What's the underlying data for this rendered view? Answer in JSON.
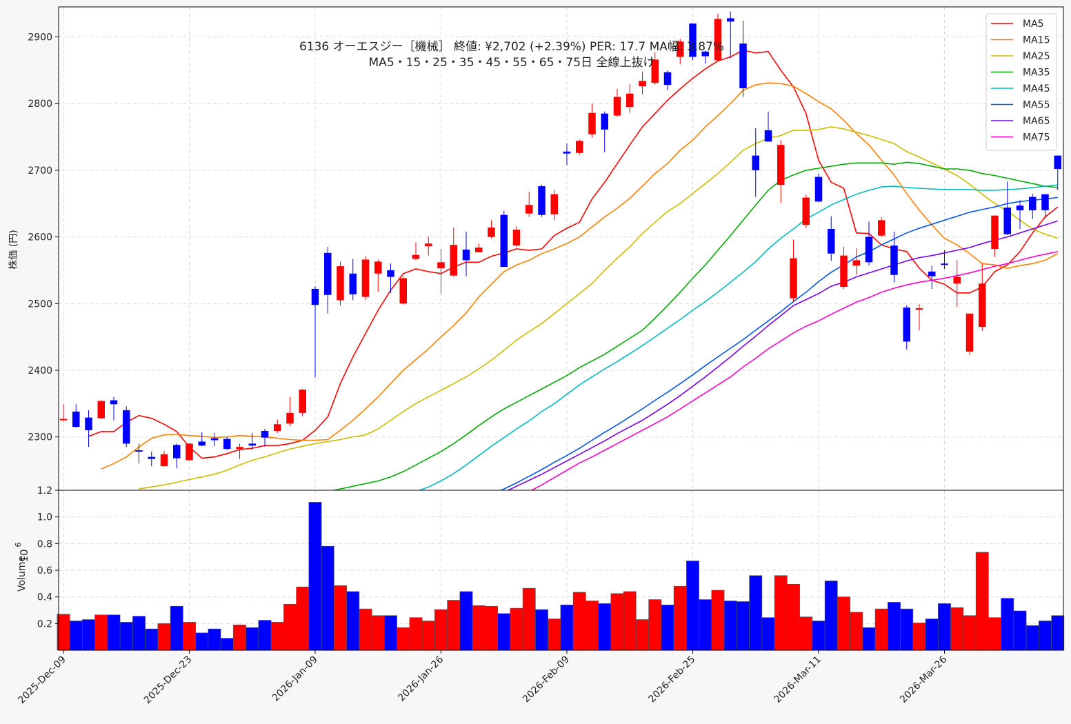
{
  "title": {
    "line1": "6136  オーエスジー［機械］ 終値: ¥2,702 (+2.39%)   PER: 17.7  MA幅: 3.87%",
    "line2": "MA5・15・25・35・45・55・65・75日 全線上抜け"
  },
  "ylabel_price": "株価 (円)",
  "ylabel_volume": "Volume",
  "volume_exponent": "10",
  "volume_exponent_power": "6",
  "colors": {
    "up": "#ff0000",
    "down": "#0000ff",
    "grid": "#d9d9d9"
  },
  "chart_data": {
    "type": "candlestick",
    "price_ylim": [
      2220,
      2945
    ],
    "price_yticks": [
      "2300",
      "2400",
      "2500",
      "2600",
      "2700",
      "2800",
      "2900"
    ],
    "volume_ylim": [
      0.0,
      1.2
    ],
    "volume_yticks": [
      "0.2",
      "0.4",
      "0.6",
      "0.8",
      "1.0",
      "1.2"
    ],
    "x_tick_labels": [
      {
        "index": 0,
        "label": "2025-Dec-09"
      },
      {
        "index": 10,
        "label": "2025-Dec-23"
      },
      {
        "index": 20,
        "label": "2026-Jan-09"
      },
      {
        "index": 30,
        "label": "2026-Jan-26"
      },
      {
        "index": 40,
        "label": "2026-Feb-09"
      },
      {
        "index": 50,
        "label": "2026-Feb-25"
      },
      {
        "index": 60,
        "label": "2026-Mar-11"
      },
      {
        "index": 70,
        "label": "2026-Mar-26"
      }
    ],
    "candles": [
      {
        "o": 2326,
        "h": 2349,
        "l": 2323,
        "c": 2327,
        "v": 0.27
      },
      {
        "o": 2338,
        "h": 2349,
        "l": 2314,
        "c": 2315,
        "v": 0.22
      },
      {
        "o": 2329,
        "h": 2340,
        "l": 2285,
        "c": 2310,
        "v": 0.23
      },
      {
        "o": 2328,
        "h": 2355,
        "l": 2327,
        "c": 2354,
        "v": 0.265
      },
      {
        "o": 2355,
        "h": 2360,
        "l": 2325,
        "c": 2349,
        "v": 0.265
      },
      {
        "o": 2340,
        "h": 2346,
        "l": 2285,
        "c": 2290,
        "v": 0.21
      },
      {
        "o": 2280,
        "h": 2290,
        "l": 2260,
        "c": 2279,
        "v": 0.255
      },
      {
        "o": 2270,
        "h": 2278,
        "l": 2256,
        "c": 2267,
        "v": 0.16
      },
      {
        "o": 2256,
        "h": 2279,
        "l": 2256,
        "c": 2274,
        "v": 0.2
      },
      {
        "o": 2288,
        "h": 2290,
        "l": 2253,
        "c": 2268,
        "v": 0.33
      },
      {
        "o": 2265,
        "h": 2290,
        "l": 2265,
        "c": 2290,
        "v": 0.21
      },
      {
        "o": 2293,
        "h": 2307,
        "l": 2286,
        "c": 2287,
        "v": 0.13
      },
      {
        "o": 2298,
        "h": 2306,
        "l": 2286,
        "c": 2295,
        "v": 0.16
      },
      {
        "o": 2297,
        "h": 2300,
        "l": 2280,
        "c": 2282,
        "v": 0.09
      },
      {
        "o": 2282,
        "h": 2290,
        "l": 2267,
        "c": 2285,
        "v": 0.19
      },
      {
        "o": 2290,
        "h": 2306,
        "l": 2281,
        "c": 2287,
        "v": 0.17
      },
      {
        "o": 2309,
        "h": 2312,
        "l": 2285,
        "c": 2299,
        "v": 0.225
      },
      {
        "o": 2309,
        "h": 2326,
        "l": 2306,
        "c": 2319,
        "v": 0.21
      },
      {
        "o": 2320,
        "h": 2360,
        "l": 2316,
        "c": 2336,
        "v": 0.345
      },
      {
        "o": 2336,
        "h": 2372,
        "l": 2331,
        "c": 2371,
        "v": 0.475
      },
      {
        "o": 2522,
        "h": 2526,
        "l": 2389,
        "c": 2498,
        "v": 1.11
      },
      {
        "o": 2576,
        "h": 2585,
        "l": 2485,
        "c": 2513,
        "v": 0.78
      },
      {
        "o": 2505,
        "h": 2563,
        "l": 2497,
        "c": 2556,
        "v": 0.485
      },
      {
        "o": 2545,
        "h": 2567,
        "l": 2505,
        "c": 2514,
        "v": 0.44
      },
      {
        "o": 2510,
        "h": 2571,
        "l": 2505,
        "c": 2566,
        "v": 0.31
      },
      {
        "o": 2545,
        "h": 2566,
        "l": 2518,
        "c": 2563,
        "v": 0.26
      },
      {
        "o": 2550,
        "h": 2560,
        "l": 2516,
        "c": 2540,
        "v": 0.26
      },
      {
        "o": 2500,
        "h": 2541,
        "l": 2499,
        "c": 2538,
        "v": 0.17
      },
      {
        "o": 2567,
        "h": 2592,
        "l": 2565,
        "c": 2573,
        "v": 0.245
      },
      {
        "o": 2586,
        "h": 2600,
        "l": 2572,
        "c": 2590,
        "v": 0.22
      },
      {
        "o": 2553,
        "h": 2582,
        "l": 2515,
        "c": 2562,
        "v": 0.305
      },
      {
        "o": 2542,
        "h": 2614,
        "l": 2540,
        "c": 2588,
        "v": 0.375
      },
      {
        "o": 2581,
        "h": 2608,
        "l": 2541,
        "c": 2565,
        "v": 0.44
      },
      {
        "o": 2577,
        "h": 2590,
        "l": 2578,
        "c": 2584,
        "v": 0.335
      },
      {
        "o": 2600,
        "h": 2625,
        "l": 2598,
        "c": 2614,
        "v": 0.33
      },
      {
        "o": 2633,
        "h": 2639,
        "l": 2555,
        "c": 2555,
        "v": 0.275
      },
      {
        "o": 2587,
        "h": 2616,
        "l": 2585,
        "c": 2611,
        "v": 0.315
      },
      {
        "o": 2635,
        "h": 2668,
        "l": 2630,
        "c": 2648,
        "v": 0.465
      },
      {
        "o": 2676,
        "h": 2678,
        "l": 2630,
        "c": 2633,
        "v": 0.305
      },
      {
        "o": 2634,
        "h": 2670,
        "l": 2625,
        "c": 2664,
        "v": 0.235
      },
      {
        "o": 2728,
        "h": 2740,
        "l": 2707,
        "c": 2725,
        "v": 0.34
      },
      {
        "o": 2726,
        "h": 2746,
        "l": 2723,
        "c": 2744,
        "v": 0.435
      },
      {
        "o": 2754,
        "h": 2800,
        "l": 2749,
        "c": 2786,
        "v": 0.37
      },
      {
        "o": 2785,
        "h": 2788,
        "l": 2727,
        "c": 2761,
        "v": 0.35
      },
      {
        "o": 2782,
        "h": 2822,
        "l": 2780,
        "c": 2810,
        "v": 0.425
      },
      {
        "o": 2795,
        "h": 2829,
        "l": 2786,
        "c": 2815,
        "v": 0.44
      },
      {
        "o": 2826,
        "h": 2848,
        "l": 2814,
        "c": 2834,
        "v": 0.23
      },
      {
        "o": 2831,
        "h": 2877,
        "l": 2828,
        "c": 2866,
        "v": 0.38
      },
      {
        "o": 2847,
        "h": 2850,
        "l": 2820,
        "c": 2828,
        "v": 0.34
      },
      {
        "o": 2870,
        "h": 2897,
        "l": 2859,
        "c": 2893,
        "v": 0.48
      },
      {
        "o": 2920,
        "h": 2920,
        "l": 2865,
        "c": 2870,
        "v": 0.67
      },
      {
        "o": 2878,
        "h": 2880,
        "l": 2860,
        "c": 2871,
        "v": 0.38
      },
      {
        "o": 2865,
        "h": 2935,
        "l": 2863,
        "c": 2927,
        "v": 0.45
      },
      {
        "o": 2928,
        "h": 2938,
        "l": 2868,
        "c": 2923,
        "v": 0.37
      },
      {
        "o": 2890,
        "h": 2924,
        "l": 2810,
        "c": 2823,
        "v": 0.365
      },
      {
        "o": 2722,
        "h": 2763,
        "l": 2660,
        "c": 2700,
        "v": 0.56
      },
      {
        "o": 2760,
        "h": 2788,
        "l": 2747,
        "c": 2743,
        "v": 0.245
      },
      {
        "o": 2678,
        "h": 2745,
        "l": 2651,
        "c": 2738,
        "v": 0.56
      },
      {
        "o": 2508,
        "h": 2596,
        "l": 2503,
        "c": 2568,
        "v": 0.495
      },
      {
        "o": 2618,
        "h": 2663,
        "l": 2613,
        "c": 2659,
        "v": 0.25
      },
      {
        "o": 2690,
        "h": 2695,
        "l": 2652,
        "c": 2653,
        "v": 0.22
      },
      {
        "o": 2612,
        "h": 2631,
        "l": 2564,
        "c": 2575,
        "v": 0.52
      },
      {
        "o": 2525,
        "h": 2585,
        "l": 2522,
        "c": 2572,
        "v": 0.4
      },
      {
        "o": 2557,
        "h": 2583,
        "l": 2543,
        "c": 2565,
        "v": 0.285
      },
      {
        "o": 2600,
        "h": 2623,
        "l": 2557,
        "c": 2562,
        "v": 0.17
      },
      {
        "o": 2602,
        "h": 2629,
        "l": 2600,
        "c": 2625,
        "v": 0.31
      },
      {
        "o": 2587,
        "h": 2608,
        "l": 2532,
        "c": 2543,
        "v": 0.36
      },
      {
        "o": 2494,
        "h": 2497,
        "l": 2431,
        "c": 2443,
        "v": 0.31
      },
      {
        "o": 2492,
        "h": 2499,
        "l": 2460,
        "c": 2493,
        "v": 0.205
      },
      {
        "o": 2548,
        "h": 2557,
        "l": 2522,
        "c": 2541,
        "v": 0.235
      },
      {
        "o": 2560,
        "h": 2580,
        "l": 2552,
        "c": 2558,
        "v": 0.35
      },
      {
        "o": 2530,
        "h": 2565,
        "l": 2495,
        "c": 2540,
        "v": 0.32
      },
      {
        "o": 2428,
        "h": 2485,
        "l": 2423,
        "c": 2485,
        "v": 0.26
      },
      {
        "o": 2465,
        "h": 2560,
        "l": 2459,
        "c": 2530,
        "v": 0.735
      },
      {
        "o": 2582,
        "h": 2632,
        "l": 2570,
        "c": 2632,
        "v": 0.245
      },
      {
        "o": 2644,
        "h": 2683,
        "l": 2603,
        "c": 2604,
        "v": 0.39
      },
      {
        "o": 2647,
        "h": 2655,
        "l": 2612,
        "c": 2640,
        "v": 0.295
      },
      {
        "o": 2660,
        "h": 2665,
        "l": 2627,
        "c": 2640,
        "v": 0.185
      },
      {
        "o": 2664,
        "h": 2664,
        "l": 2628,
        "c": 2640,
        "v": 0.22
      },
      {
        "o": 2722,
        "h": 2722,
        "l": 2670,
        "c": 2702,
        "v": 0.26
      }
    ],
    "ma_series": [
      {
        "name": "MA5",
        "color": "#ff0000",
        "values": [
          2301,
          2308,
          2308,
          2322,
          2332,
          2328,
          2319,
          2308,
          2285,
          2268,
          2270,
          2275,
          2281,
          2283,
          2287,
          2287,
          2290,
          2295,
          2310,
          2330,
          2380,
          2420,
          2455,
          2490,
          2520,
          2545,
          2552,
          2548,
          2545,
          2555,
          2562,
          2562,
          2571,
          2576,
          2582,
          2580,
          2582,
          2602,
          2613,
          2622,
          2657,
          2682,
          2710,
          2738,
          2765,
          2785,
          2805,
          2822,
          2838,
          2852,
          2864,
          2870,
          2880,
          2876,
          2878,
          2850,
          2825,
          2785,
          2715,
          2682,
          2673,
          2606,
          2605,
          2588,
          2582,
          2578,
          2553,
          2535,
          2529,
          2516,
          2516,
          2525,
          2548,
          2558,
          2578,
          2606,
          2630,
          2645
        ]
      },
      {
        "name": "MA15",
        "color": "#ff8000",
        "values": [
          2252,
          2260,
          2270,
          2285,
          2298,
          2303,
          2304,
          2302,
          2301,
          2299,
          2300,
          2302,
          2301,
          2300,
          2298,
          2296,
          2295,
          2295,
          2296,
          2310,
          2325,
          2342,
          2360,
          2380,
          2400,
          2416,
          2432,
          2450,
          2467,
          2486,
          2510,
          2529,
          2548,
          2558,
          2565,
          2575,
          2582,
          2590,
          2600,
          2615,
          2630,
          2643,
          2658,
          2676,
          2695,
          2710,
          2730,
          2745,
          2765,
          2782,
          2800,
          2820,
          2828,
          2831,
          2830,
          2826,
          2815,
          2803,
          2792,
          2775,
          2755,
          2738,
          2715,
          2693,
          2665,
          2640,
          2618,
          2598,
          2588,
          2575,
          2560,
          2558,
          2553,
          2557,
          2560,
          2565,
          2575
        ]
      },
      {
        "name": "MA25",
        "color": "#ccbb00",
        "values": [
          2222,
          2225,
          2228,
          2232,
          2236,
          2240,
          2244,
          2250,
          2258,
          2265,
          2270,
          2276,
          2282,
          2286,
          2290,
          2293,
          2296,
          2300,
          2303,
          2312,
          2325,
          2338,
          2350,
          2360,
          2370,
          2380,
          2390,
          2402,
          2415,
          2430,
          2445,
          2458,
          2470,
          2485,
          2500,
          2515,
          2530,
          2550,
          2568,
          2585,
          2605,
          2622,
          2638,
          2650,
          2665,
          2680,
          2695,
          2712,
          2730,
          2740,
          2748,
          2752,
          2760,
          2760,
          2761,
          2765,
          2762,
          2757,
          2752,
          2746,
          2740,
          2728,
          2720,
          2711,
          2702,
          2692,
          2679,
          2664,
          2650,
          2639,
          2625,
          2612,
          2604,
          2598
        ]
      },
      {
        "name": "MA35",
        "color": "#00aa00",
        "values": [
          2188,
          2190,
          2193,
          2196,
          2200,
          2203,
          2207,
          2210,
          2214,
          2218,
          2222,
          2226,
          2230,
          2234,
          2240,
          2248,
          2258,
          2268,
          2278,
          2290,
          2303,
          2317,
          2330,
          2342,
          2352,
          2362,
          2372,
          2382,
          2392,
          2404,
          2414,
          2424,
          2436,
          2448,
          2460,
          2478,
          2497,
          2517,
          2538,
          2558,
          2580,
          2602,
          2625,
          2648,
          2670,
          2685,
          2693,
          2700,
          2703,
          2706,
          2709,
          2711,
          2711,
          2711,
          2709,
          2712,
          2710,
          2706,
          2702,
          2702,
          2700,
          2695,
          2692,
          2688,
          2684,
          2680,
          2676,
          2674
        ]
      },
      {
        "name": "MA45",
        "color": "#00bbbb",
        "values": [
          2170,
          2172,
          2174,
          2176,
          2178,
          2180,
          2182,
          2185,
          2188,
          2192,
          2196,
          2200,
          2203,
          2207,
          2212,
          2218,
          2225,
          2234,
          2245,
          2258,
          2272,
          2286,
          2299,
          2312,
          2324,
          2338,
          2350,
          2364,
          2378,
          2390,
          2402,
          2413,
          2425,
          2437,
          2450,
          2463,
          2476,
          2490,
          2503,
          2517,
          2532,
          2547,
          2563,
          2582,
          2598,
          2612,
          2627,
          2637,
          2648,
          2656,
          2664,
          2670,
          2675,
          2676,
          2674,
          2673,
          2672,
          2671,
          2671,
          2671,
          2670,
          2670,
          2671,
          2672,
          2674,
          2676,
          2678
        ]
      },
      {
        "name": "MA55",
        "color": "#0055ee",
        "values": [
          2150,
          2152,
          2154,
          2156,
          2158,
          2160,
          2162,
          2165,
          2168,
          2171,
          2175,
          2179,
          2183,
          2188,
          2193,
          2199,
          2206,
          2214,
          2222,
          2231,
          2241,
          2251,
          2262,
          2272,
          2283,
          2295,
          2307,
          2318,
          2330,
          2342,
          2355,
          2367,
          2380,
          2393,
          2407,
          2420,
          2433,
          2446,
          2460,
          2474,
          2488,
          2503,
          2517,
          2533,
          2547,
          2558,
          2570,
          2578,
          2588,
          2597,
          2606,
          2613,
          2619,
          2625,
          2631,
          2637,
          2641,
          2645,
          2650,
          2653,
          2655,
          2657,
          2659
        ]
      },
      {
        "name": "MA65",
        "color": "#7700ee",
        "values": [
          2130,
          2132,
          2134,
          2136,
          2138,
          2140,
          2143,
          2146,
          2149,
          2152,
          2156,
          2160,
          2164,
          2169,
          2174,
          2180,
          2186,
          2193,
          2200,
          2208,
          2217,
          2226,
          2235,
          2244,
          2254,
          2264,
          2274,
          2284,
          2294,
          2305,
          2315,
          2325,
          2337,
          2349,
          2362,
          2376,
          2390,
          2405,
          2420,
          2436,
          2451,
          2467,
          2482,
          2497,
          2506,
          2515,
          2526,
          2532,
          2540,
          2546,
          2552,
          2558,
          2564,
          2569,
          2572,
          2576,
          2580,
          2584,
          2590,
          2595,
          2600,
          2606,
          2612,
          2618,
          2624
        ]
      },
      {
        "name": "MA75",
        "color": "#ff00cc",
        "values": [
          2110,
          2112,
          2114,
          2116,
          2118,
          2120,
          2122,
          2125,
          2128,
          2131,
          2134,
          2138,
          2142,
          2146,
          2151,
          2156,
          2162,
          2168,
          2175,
          2183,
          2192,
          2200,
          2209,
          2218,
          2228,
          2239,
          2250,
          2261,
          2270,
          2280,
          2290,
          2300,
          2310,
          2320,
          2330,
          2342,
          2354,
          2366,
          2378,
          2390,
          2405,
          2418,
          2432,
          2444,
          2456,
          2466,
          2474,
          2484,
          2493,
          2502,
          2509,
          2517,
          2523,
          2528,
          2532,
          2535,
          2538,
          2542,
          2546,
          2551,
          2556,
          2560,
          2565,
          2570,
          2574,
          2578
        ]
      }
    ]
  }
}
